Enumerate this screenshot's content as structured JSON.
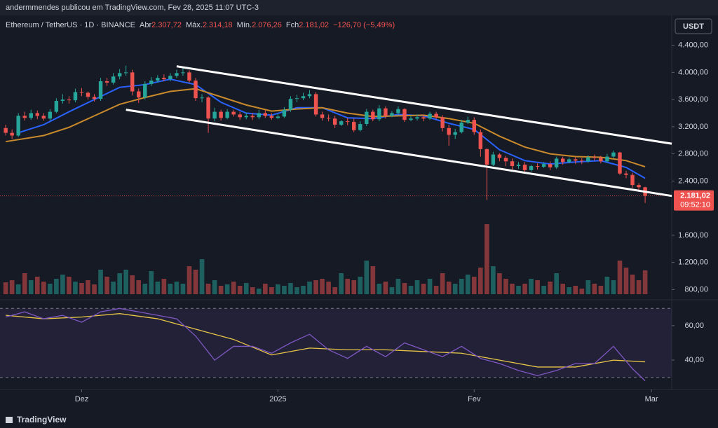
{
  "header": {
    "publisher": "andermmendes publicou em TradingView.com, Fev 28, 2025 11:07 UTC-3"
  },
  "chart_data": {
    "type": "candlestick",
    "title": "Ethereum / TetherUS · 1D · BINANCE",
    "ohlc_labels": {
      "open_name": "Abr",
      "open": "2.307,72",
      "high_name": "Máx.",
      "high": "2.314,18",
      "low_name": "Mín.",
      "low": "2.076,26",
      "close_name": "Fch",
      "close": "2.181,02",
      "change": "−126,70 (−5,49%)"
    },
    "currency": "USDT",
    "last_price": 2181.02,
    "last_price_label": "2.181,02",
    "countdown": "09:52:10",
    "xlim": [
      -0.9,
      105.2
    ],
    "xticks": [
      {
        "value": 12,
        "label": "Dez"
      },
      {
        "value": 43,
        "label": "2025"
      },
      {
        "value": 74,
        "label": "Fev"
      },
      {
        "value": 102,
        "label": "Mar"
      }
    ],
    "ylim": [
      680,
      4840
    ],
    "yticks": [
      {
        "value": 800,
        "label": "800,00"
      },
      {
        "value": 1200,
        "label": "1.200,00"
      },
      {
        "value": 1600,
        "label": "1.600,00"
      },
      {
        "value": 2400,
        "label": "2.400,00"
      },
      {
        "value": 2800,
        "label": "2.800,00"
      },
      {
        "value": 3200,
        "label": "3.200,00"
      },
      {
        "value": 3600,
        "label": "3.600,00"
      },
      {
        "value": 4000,
        "label": "4.000,00"
      },
      {
        "value": 4400,
        "label": "4.400,00"
      }
    ],
    "up_color": "#26a69a",
    "down_color": "#ef5350",
    "open": [
      3180,
      3110,
      3070,
      3360,
      3330,
      3400,
      3360,
      3320,
      3420,
      3580,
      3600,
      3590,
      3710,
      3700,
      3640,
      3610,
      3870,
      3850,
      3940,
      3990,
      4000,
      3720,
      3630,
      3830,
      3880,
      3920,
      3900,
      3950,
      3990,
      4000,
      3880,
      3620,
      3630,
      3320,
      3420,
      3330,
      3420,
      3380,
      3340,
      3360,
      3340,
      3400,
      3360,
      3330,
      3350,
      3450,
      3610,
      3620,
      3650,
      3680,
      3380,
      3330,
      3320,
      3230,
      3280,
      3270,
      3150,
      3240,
      3420,
      3310,
      3470,
      3360,
      3400,
      3460,
      3300,
      3320,
      3340,
      3320,
      3390,
      3340,
      3180,
      3080,
      3120,
      3260,
      3300,
      3120,
      2870,
      2640,
      2790,
      2740,
      2690,
      2620,
      2640,
      2560,
      2620,
      2610,
      2650,
      2600,
      2730,
      2680,
      2720,
      2700,
      2690,
      2750,
      2740,
      2690,
      2760,
      2820,
      2510,
      2490,
      2340,
      2307.72
    ],
    "high": [
      3230,
      3160,
      3400,
      3420,
      3450,
      3440,
      3400,
      3460,
      3620,
      3680,
      3650,
      3760,
      3770,
      3720,
      3680,
      3920,
      3920,
      3990,
      4050,
      4100,
      4040,
      3760,
      3870,
      3930,
      3960,
      3970,
      3990,
      4040,
      4060,
      4030,
      3920,
      3680,
      3650,
      3480,
      3450,
      3460,
      3450,
      3420,
      3410,
      3400,
      3450,
      3440,
      3400,
      3390,
      3490,
      3650,
      3670,
      3700,
      3740,
      3710,
      3420,
      3380,
      3360,
      3300,
      3330,
      3320,
      3280,
      3460,
      3450,
      3520,
      3500,
      3430,
      3500,
      3470,
      3360,
      3380,
      3380,
      3420,
      3420,
      3370,
      3230,
      3170,
      3300,
      3350,
      3340,
      3160,
      2880,
      2830,
      2810,
      2770,
      2730,
      2680,
      2680,
      2640,
      2660,
      2680,
      2690,
      2760,
      2760,
      2750,
      2750,
      2740,
      2780,
      2790,
      2770,
      2800,
      2850,
      2830,
      2550,
      2520,
      2370,
      2314.18
    ],
    "low": [
      3070,
      3020,
      3050,
      3290,
      3300,
      3310,
      3290,
      3290,
      3400,
      3540,
      3540,
      3560,
      3650,
      3600,
      3570,
      3580,
      3800,
      3820,
      3900,
      3950,
      3660,
      3550,
      3600,
      3800,
      3850,
      3870,
      3870,
      3920,
      3950,
      3850,
      3580,
      3560,
      3110,
      3280,
      3290,
      3310,
      3350,
      3300,
      3310,
      3300,
      3310,
      3330,
      3300,
      3310,
      3330,
      3420,
      3560,
      3590,
      3620,
      3350,
      3290,
      3280,
      3180,
      3210,
      3220,
      3120,
      3130,
      3210,
      3280,
      3280,
      3320,
      3340,
      3370,
      3270,
      3280,
      3290,
      3280,
      3300,
      3310,
      3130,
      2920,
      3020,
      3100,
      3240,
      3080,
      2760,
      2120,
      2620,
      2690,
      2620,
      2570,
      2580,
      2520,
      2540,
      2570,
      2590,
      2560,
      2580,
      2640,
      2660,
      2650,
      2650,
      2670,
      2700,
      2660,
      2670,
      2740,
      2490,
      2440,
      2300,
      2250,
      2076.26
    ],
    "close": [
      3110,
      3070,
      3360,
      3330,
      3400,
      3360,
      3320,
      3420,
      3580,
      3600,
      3590,
      3710,
      3700,
      3640,
      3610,
      3870,
      3850,
      3940,
      3990,
      4000,
      3720,
      3630,
      3830,
      3880,
      3920,
      3900,
      3950,
      3990,
      4000,
      3880,
      3620,
      3630,
      3320,
      3420,
      3330,
      3420,
      3380,
      3340,
      3360,
      3340,
      3400,
      3360,
      3330,
      3350,
      3450,
      3610,
      3620,
      3650,
      3680,
      3380,
      3330,
      3320,
      3230,
      3280,
      3270,
      3150,
      3240,
      3420,
      3310,
      3470,
      3360,
      3400,
      3460,
      3300,
      3320,
      3340,
      3320,
      3390,
      3340,
      3180,
      3080,
      3120,
      3260,
      3300,
      3120,
      2870,
      2640,
      2790,
      2740,
      2690,
      2620,
      2640,
      2560,
      2620,
      2610,
      2650,
      2600,
      2730,
      2680,
      2720,
      2700,
      2690,
      2750,
      2740,
      2690,
      2760,
      2820,
      2510,
      2490,
      2340,
      2307.72,
      2181.02
    ],
    "volume": [
      17,
      20,
      14,
      30,
      20,
      25,
      18,
      15,
      22,
      28,
      25,
      18,
      16,
      20,
      14,
      35,
      25,
      18,
      30,
      35,
      27,
      20,
      15,
      33,
      18,
      22,
      15,
      18,
      15,
      40,
      35,
      50,
      15,
      20,
      12,
      14,
      18,
      12,
      16,
      10,
      8,
      15,
      10,
      14,
      12,
      16,
      10,
      12,
      18,
      20,
      22,
      18,
      10,
      30,
      22,
      20,
      25,
      48,
      40,
      15,
      18,
      10,
      22,
      16,
      12,
      20,
      15,
      22,
      12,
      30,
      18,
      15,
      22,
      28,
      25,
      38,
      100,
      40,
      30,
      22,
      15,
      12,
      15,
      22,
      20,
      12,
      18,
      30,
      15,
      10,
      12,
      8,
      20,
      15,
      12,
      25,
      20,
      48,
      38,
      28,
      20,
      34
    ],
    "vlim": [
      0,
      100
    ],
    "lines": [
      {
        "color": "#2962ff",
        "x": [
          2,
          6,
          10,
          14,
          18,
          22,
          26,
          30,
          34,
          38,
          42,
          46,
          50,
          54,
          58,
          62,
          66,
          70,
          74,
          78,
          82,
          86,
          90,
          94,
          98,
          101
        ],
        "values": [
          3110,
          3230,
          3420,
          3600,
          3780,
          3820,
          3900,
          3820,
          3560,
          3400,
          3370,
          3480,
          3480,
          3330,
          3320,
          3380,
          3360,
          3250,
          3160,
          2860,
          2700,
          2650,
          2680,
          2700,
          2600,
          2440
        ]
      },
      {
        "color": "#c98a2c",
        "x": [
          0,
          6,
          10,
          14,
          18,
          22,
          26,
          30,
          34,
          38,
          42,
          46,
          50,
          54,
          58,
          62,
          66,
          70,
          74,
          78,
          82,
          86,
          90,
          94,
          98,
          101
        ],
        "values": [
          2980,
          3070,
          3190,
          3360,
          3530,
          3630,
          3720,
          3760,
          3640,
          3520,
          3430,
          3460,
          3480,
          3400,
          3350,
          3360,
          3370,
          3320,
          3250,
          3060,
          2900,
          2800,
          2760,
          2750,
          2700,
          2610
        ]
      }
    ],
    "trendlines": [
      {
        "color": "#ffffff",
        "x": [
          27,
          105.2
        ],
        "values": [
          4090,
          2950
        ]
      },
      {
        "color": "#ffffff",
        "x": [
          19,
          105.2
        ],
        "values": [
          3450,
          2180
        ]
      }
    ],
    "rsi": {
      "color": "#7e57c2",
      "x": [
        0,
        3,
        6,
        9,
        12,
        15,
        18,
        21,
        24,
        27,
        30,
        33,
        36,
        39,
        42,
        45,
        48,
        51,
        54,
        57,
        60,
        63,
        66,
        69,
        72,
        75,
        78,
        81,
        84,
        87,
        90,
        93,
        96,
        99,
        101
      ],
      "values": [
        65,
        68,
        64,
        66,
        62,
        68,
        70,
        68,
        66,
        64,
        54,
        40,
        48,
        48,
        44,
        50,
        55,
        46,
        41,
        48,
        42,
        50,
        46,
        42,
        48,
        41,
        38,
        34,
        31,
        34,
        38,
        38,
        48,
        35,
        28
      ],
      "ma": {
        "color": "#e8c547",
        "x": [
          0,
          6,
          12,
          18,
          24,
          30,
          36,
          42,
          48,
          54,
          60,
          66,
          72,
          78,
          84,
          90,
          96,
          101
        ],
        "values": [
          66,
          64,
          65,
          67,
          64,
          58,
          52,
          43,
          47,
          46,
          46,
          45,
          44,
          40,
          36,
          36,
          40,
          39
        ]
      },
      "ylim": [
        25,
        75
      ],
      "yticks": [
        {
          "value": 40,
          "label": "40,00"
        },
        {
          "value": 60,
          "label": "60,00"
        }
      ],
      "bands": [
        30,
        70
      ]
    }
  },
  "footer": {
    "brand": "TradingView"
  }
}
